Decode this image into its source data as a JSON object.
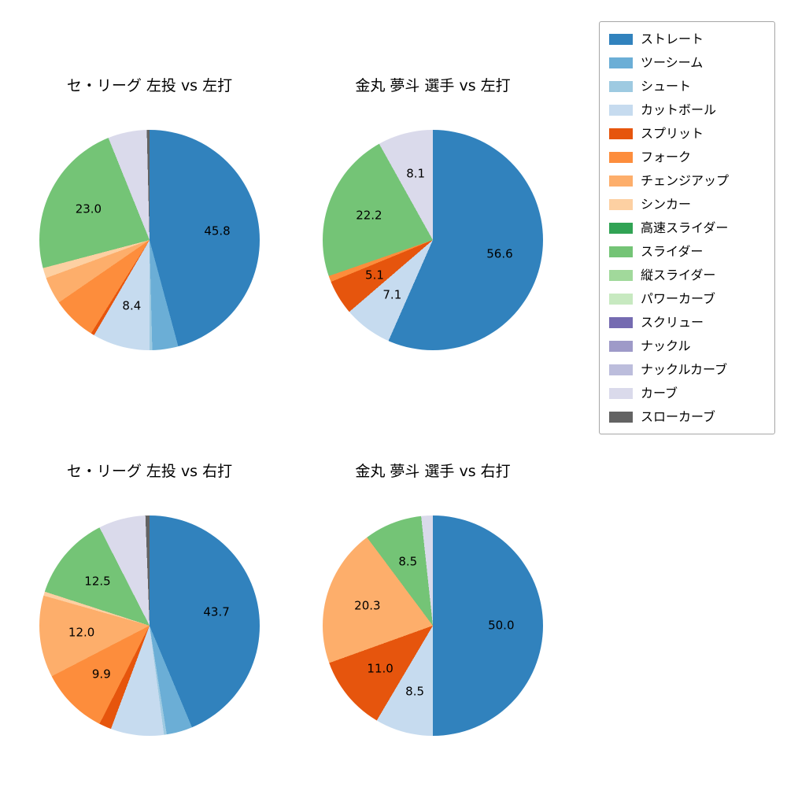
{
  "legend": {
    "items": [
      {
        "label": "ストレート",
        "color": "#3182bd"
      },
      {
        "label": "ツーシーム",
        "color": "#6baed6"
      },
      {
        "label": "シュート",
        "color": "#9ecae1"
      },
      {
        "label": "カットボール",
        "color": "#c6dbef"
      },
      {
        "label": "スプリット",
        "color": "#e6550d"
      },
      {
        "label": "フォーク",
        "color": "#fd8d3c"
      },
      {
        "label": "チェンジアップ",
        "color": "#fdae6b"
      },
      {
        "label": "シンカー",
        "color": "#fdd0a2"
      },
      {
        "label": "高速スライダー",
        "color": "#31a354"
      },
      {
        "label": "スライダー",
        "color": "#74c476"
      },
      {
        "label": "縦スライダー",
        "color": "#a1d99b"
      },
      {
        "label": "パワーカーブ",
        "color": "#c7e9c0"
      },
      {
        "label": "スクリュー",
        "color": "#756bb1"
      },
      {
        "label": "ナックル",
        "color": "#9e9ac8"
      },
      {
        "label": "ナックルカーブ",
        "color": "#bcbddc"
      },
      {
        "label": "カーブ",
        "color": "#dadaeb"
      },
      {
        "label": "スローカーブ",
        "color": "#636363"
      }
    ]
  },
  "chart_data": [
    {
      "type": "pie",
      "title": "セ・リーグ 左投 vs 左打",
      "start_angle_deg": 0,
      "direction": "clockwise-from-top",
      "slices": [
        {
          "label": "ストレート",
          "value": 45.8,
          "show_pct_label": true
        },
        {
          "label": "ツーシーム",
          "value": 3.8,
          "show_pct_label": false
        },
        {
          "label": "シュート",
          "value": 0.4,
          "show_pct_label": false
        },
        {
          "label": "カットボール",
          "value": 8.4,
          "show_pct_label": true
        },
        {
          "label": "スプリット",
          "value": 0.5,
          "show_pct_label": false
        },
        {
          "label": "フォーク",
          "value": 6.5,
          "show_pct_label": false
        },
        {
          "label": "チェンジアップ",
          "value": 4.0,
          "show_pct_label": false
        },
        {
          "label": "シンカー",
          "value": 1.5,
          "show_pct_label": false
        },
        {
          "label": "スライダー",
          "value": 23.0,
          "show_pct_label": true
        },
        {
          "label": "カーブ",
          "value": 5.7,
          "show_pct_label": false
        },
        {
          "label": "スローカーブ",
          "value": 0.4,
          "show_pct_label": false
        }
      ]
    },
    {
      "type": "pie",
      "title": "金丸 夢斗 選手 vs 左打",
      "start_angle_deg": 0,
      "direction": "clockwise-from-top",
      "slices": [
        {
          "label": "ストレート",
          "value": 56.6,
          "show_pct_label": true
        },
        {
          "label": "カットボール",
          "value": 7.1,
          "show_pct_label": true
        },
        {
          "label": "スプリット",
          "value": 5.1,
          "show_pct_label": true
        },
        {
          "label": "フォーク",
          "value": 0.9,
          "show_pct_label": false
        },
        {
          "label": "スライダー",
          "value": 22.2,
          "show_pct_label": true
        },
        {
          "label": "カーブ",
          "value": 8.1,
          "show_pct_label": true
        }
      ]
    },
    {
      "type": "pie",
      "title": "セ・リーグ 左投 vs 右打",
      "start_angle_deg": 0,
      "direction": "clockwise-from-top",
      "slices": [
        {
          "label": "ストレート",
          "value": 43.7,
          "show_pct_label": true
        },
        {
          "label": "ツーシーム",
          "value": 3.8,
          "show_pct_label": false
        },
        {
          "label": "シュート",
          "value": 0.4,
          "show_pct_label": false
        },
        {
          "label": "カットボール",
          "value": 7.8,
          "show_pct_label": false
        },
        {
          "label": "スプリット",
          "value": 1.8,
          "show_pct_label": false
        },
        {
          "label": "フォーク",
          "value": 9.9,
          "show_pct_label": true
        },
        {
          "label": "チェンジアップ",
          "value": 12.0,
          "show_pct_label": true
        },
        {
          "label": "シンカー",
          "value": 0.6,
          "show_pct_label": false
        },
        {
          "label": "スライダー",
          "value": 12.5,
          "show_pct_label": true
        },
        {
          "label": "カーブ",
          "value": 6.9,
          "show_pct_label": false
        },
        {
          "label": "スローカーブ",
          "value": 0.6,
          "show_pct_label": false
        }
      ]
    },
    {
      "type": "pie",
      "title": "金丸 夢斗 選手 vs 右打",
      "start_angle_deg": 0,
      "direction": "clockwise-from-top",
      "slices": [
        {
          "label": "ストレート",
          "value": 50.0,
          "show_pct_label": true
        },
        {
          "label": "カットボール",
          "value": 8.5,
          "show_pct_label": true
        },
        {
          "label": "スプリット",
          "value": 11.0,
          "show_pct_label": true
        },
        {
          "label": "チェンジアップ",
          "value": 20.3,
          "show_pct_label": true
        },
        {
          "label": "スライダー",
          "value": 8.5,
          "show_pct_label": true
        },
        {
          "label": "カーブ",
          "value": 1.7,
          "show_pct_label": false
        }
      ]
    }
  ]
}
